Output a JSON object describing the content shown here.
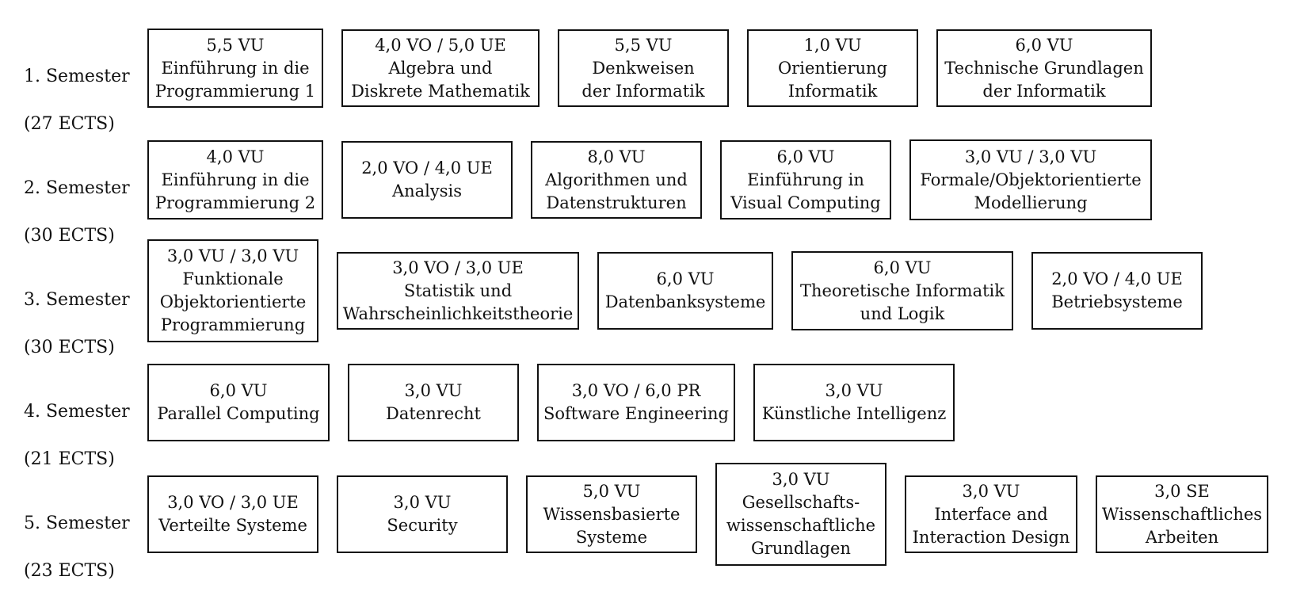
{
  "semesters": [
    {
      "label": [
        "1. Semester",
        "(27 ECTS)"
      ],
      "courses": [
        [
          "5,5 VU",
          "Einführung in die",
          "Programmierung 1"
        ],
        [
          "4,0 VO / 5,0 UE",
          "Algebra und",
          "Diskrete Mathematik"
        ],
        [
          "5,5 VU",
          "Denkweisen",
          "der Informatik"
        ],
        [
          "1,0 VU",
          "Orientierung",
          "Informatik"
        ],
        [
          "6,0 VU",
          "Technische Grundlagen",
          "der Informatik"
        ]
      ]
    },
    {
      "label": [
        "2. Semester",
        "(30 ECTS)"
      ],
      "courses": [
        [
          "4,0 VU",
          "Einführung in die",
          "Programmierung 2"
        ],
        [
          "2,0 VO / 4,0 UE",
          "Analysis"
        ],
        [
          "8,0 VU",
          "Algorithmen und",
          "Datenstrukturen"
        ],
        [
          "6,0 VU",
          "Einführung in",
          "Visual Computing"
        ],
        [
          "3,0 VU / 3,0 VU",
          "Formale/Objektorientierte",
          "Modellierung"
        ]
      ]
    },
    {
      "label": [
        "3. Semester",
        "(30 ECTS)"
      ],
      "courses": [
        [
          "3,0 VU / 3,0 VU",
          "Funktionale",
          "Objektorientierte",
          "Programmierung"
        ],
        [
          "3,0 VO / 3,0 UE",
          "Statistik und",
          "Wahrscheinlichkeitstheorie"
        ],
        [
          "6,0 VU",
          "Datenbanksysteme"
        ],
        [
          "6,0 VU",
          "Theoretische Informatik",
          "und Logik"
        ],
        [
          "2,0 VO / 4,0 UE",
          "Betriebsysteme"
        ]
      ]
    },
    {
      "label": [
        "4. Semester",
        "(21 ECTS)"
      ],
      "courses": [
        [
          "6,0 VU",
          "Parallel Computing"
        ],
        [
          "3,0 VU",
          "Datenrecht"
        ],
        [
          "3,0 VO / 6,0 PR",
          "Software Engineering"
        ],
        [
          "3,0 VU",
          "Künstliche Intelligenz"
        ]
      ]
    },
    {
      "label": [
        "5. Semester",
        "(23 ECTS)"
      ],
      "courses": [
        [
          "3,0 VO / 3,0 UE",
          "Verteilte Systeme"
        ],
        [
          "3,0 VU",
          "Security"
        ],
        [
          "5,0 VU",
          "Wissensbasierte",
          "Systeme"
        ],
        [
          "3,0 VU",
          "Gesellschafts-",
          "wissenschaftliche",
          "Grundlagen"
        ],
        [
          "3,0 VU",
          "Interface and",
          "Interaction Design"
        ],
        [
          "3,0 SE",
          "Wissenschaftliches",
          "Arbeiten"
        ]
      ]
    }
  ]
}
